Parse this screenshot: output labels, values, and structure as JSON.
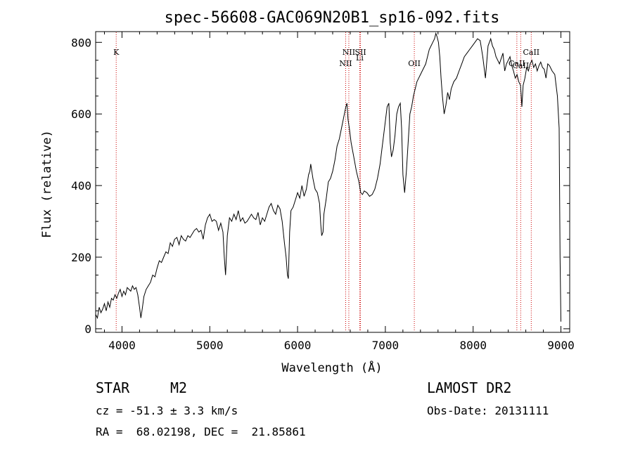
{
  "chart_data": {
    "type": "line",
    "title": "spec-56608-GAC069N20B1_sp16-092.fits",
    "xlabel": "Wavelength (Å)",
    "ylabel": "Flux (relative)",
    "xlim": [
      3700,
      9100
    ],
    "ylim": [
      -10,
      830
    ],
    "xticks": [
      4000,
      5000,
      6000,
      7000,
      8000,
      9000
    ],
    "yticks": [
      0,
      200,
      400,
      600,
      800
    ],
    "grid": false,
    "line_color": "#000000",
    "marker_color": "#cc0000",
    "series": [
      {
        "x": [
          3700,
          3720,
          3740,
          3760,
          3780,
          3800,
          3820,
          3840,
          3860,
          3880,
          3900,
          3920,
          3940,
          3960,
          3980,
          4000,
          4020,
          4040,
          4060,
          4080,
          4100,
          4120,
          4140,
          4160,
          4180,
          4200,
          4215,
          4230,
          4250,
          4275,
          4300,
          4325,
          4350,
          4375,
          4400,
          4425,
          4450,
          4475,
          4500,
          4525,
          4550,
          4575,
          4600,
          4625,
          4650,
          4675,
          4700,
          4725,
          4750,
          4775,
          4800,
          4825,
          4850,
          4875,
          4900,
          4925,
          4950,
          4975,
          5000,
          5025,
          5050,
          5075,
          5100,
          5125,
          5150,
          5165,
          5180,
          5200,
          5225,
          5250,
          5275,
          5300,
          5325,
          5350,
          5375,
          5400,
          5425,
          5450,
          5475,
          5500,
          5525,
          5550,
          5575,
          5600,
          5625,
          5650,
          5675,
          5700,
          5725,
          5750,
          5775,
          5800,
          5825,
          5850,
          5870,
          5885,
          5895,
          5910,
          5925,
          5950,
          5975,
          6000,
          6025,
          6050,
          6075,
          6100,
          6125,
          6140,
          6150,
          6175,
          6200,
          6225,
          6250,
          6265,
          6275,
          6290,
          6300,
          6325,
          6350,
          6375,
          6400,
          6425,
          6450,
          6475,
          6500,
          6525,
          6550,
          6563,
          6575,
          6590,
          6610,
          6640,
          6670,
          6700,
          6720,
          6740,
          6760,
          6790,
          6820,
          6850,
          6880,
          6910,
          6940,
          6960,
          6980,
          7000,
          7020,
          7040,
          7055,
          7070,
          7090,
          7110,
          7130,
          7150,
          7170,
          7185,
          7200,
          7220,
          7240,
          7260,
          7280,
          7300,
          7320,
          7340,
          7360,
          7380,
          7400,
          7420,
          7440,
          7460,
          7480,
          7500,
          7520,
          7540,
          7560,
          7575,
          7590,
          7605,
          7620,
          7635,
          7650,
          7670,
          7690,
          7710,
          7730,
          7750,
          7780,
          7810,
          7840,
          7870,
          7900,
          7930,
          7960,
          7990,
          8020,
          8050,
          8080,
          8110,
          8140,
          8170,
          8185,
          8200,
          8220,
          8240,
          8260,
          8280,
          8300,
          8320,
          8340,
          8360,
          8380,
          8400,
          8420,
          8440,
          8460,
          8480,
          8500,
          8520,
          8540,
          8555,
          8570,
          8590,
          8610,
          8630,
          8650,
          8670,
          8690,
          8710,
          8730,
          8750,
          8770,
          8790,
          8810,
          8830,
          8850,
          8870,
          8900,
          8930,
          8960,
          8980,
          8990,
          9000
        ],
        "values": [
          40,
          30,
          60,
          45,
          55,
          70,
          50,
          75,
          60,
          85,
          80,
          95,
          85,
          100,
          110,
          90,
          105,
          95,
          115,
          110,
          105,
          120,
          110,
          115,
          95,
          60,
          30,
          55,
          90,
          110,
          120,
          130,
          150,
          145,
          170,
          190,
          185,
          200,
          215,
          210,
          240,
          230,
          250,
          255,
          235,
          260,
          250,
          245,
          260,
          255,
          265,
          275,
          280,
          270,
          275,
          250,
          290,
          310,
          320,
          300,
          305,
          300,
          275,
          295,
          270,
          200,
          150,
          260,
          310,
          300,
          320,
          305,
          330,
          300,
          310,
          295,
          300,
          310,
          320,
          310,
          305,
          325,
          290,
          310,
          300,
          320,
          340,
          350,
          330,
          320,
          345,
          335,
          300,
          240,
          200,
          150,
          140,
          270,
          330,
          340,
          360,
          380,
          365,
          400,
          370,
          390,
          430,
          440,
          460,
          420,
          390,
          380,
          350,
          290,
          260,
          270,
          320,
          360,
          410,
          420,
          440,
          470,
          510,
          530,
          560,
          590,
          620,
          630,
          585,
          560,
          520,
          480,
          440,
          410,
          380,
          375,
          385,
          380,
          370,
          375,
          390,
          420,
          460,
          500,
          540,
          580,
          620,
          630,
          520,
          480,
          500,
          540,
          600,
          620,
          630,
          560,
          430,
          380,
          440,
          520,
          600,
          620,
          650,
          670,
          690,
          700,
          710,
          720,
          730,
          740,
          760,
          780,
          790,
          800,
          810,
          825,
          815,
          800,
          760,
          700,
          650,
          600,
          625,
          660,
          640,
          670,
          690,
          700,
          720,
          740,
          760,
          770,
          780,
          790,
          800,
          810,
          805,
          760,
          700,
          790,
          800,
          810,
          790,
          780,
          760,
          750,
          740,
          755,
          770,
          720,
          740,
          750,
          760,
          735,
          720,
          700,
          710,
          690,
          680,
          620,
          680,
          700,
          730,
          720,
          740,
          750,
          730,
          740,
          720,
          735,
          745,
          730,
          725,
          700,
          740,
          735,
          720,
          710,
          650,
          560,
          200,
          20
        ]
      }
    ],
    "line_markers": [
      {
        "label": "K",
        "x": 3934,
        "row": 0
      },
      {
        "label": "NII",
        "x": 6548,
        "row": 1
      },
      {
        "label": "NII",
        "x": 6584,
        "row": 0
      },
      {
        "label": "Li",
        "x": 6708,
        "row": 0.5
      },
      {
        "label": "SII",
        "x": 6717,
        "row": 0
      },
      {
        "label": "OII",
        "x": 7330,
        "row": 1
      },
      {
        "label": "CaII",
        "x": 8498,
        "row": 1
      },
      {
        "label": "CaII",
        "x": 8542,
        "row": 1.2
      },
      {
        "label": "CaII",
        "x": 8662,
        "row": 0
      }
    ]
  },
  "info": {
    "star_type": "STAR",
    "subclass": "M2",
    "survey": "LAMOST DR2",
    "cz": "cz = -51.3 ± 3.3 km/s",
    "obs_date": "Obs-Date: 20131111",
    "coords": "RA =  68.02198, DEC =  21.85861"
  }
}
